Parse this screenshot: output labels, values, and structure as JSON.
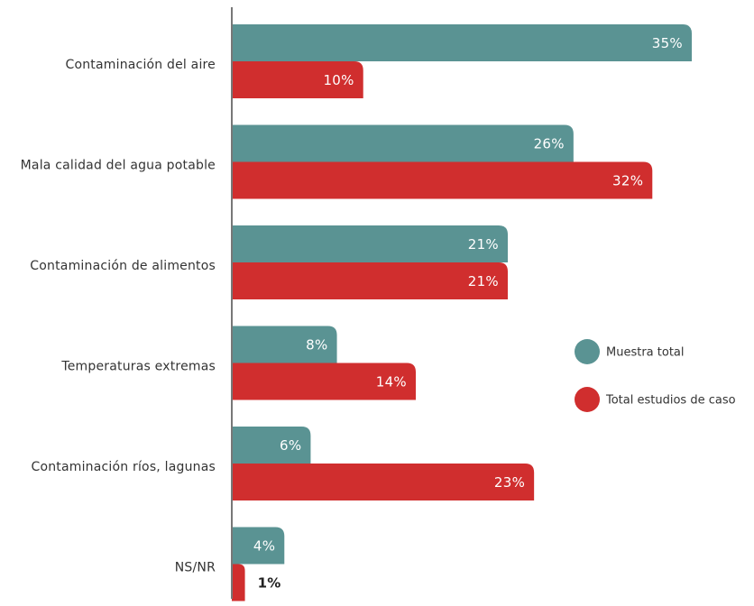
{
  "chart_data": {
    "type": "bar",
    "orientation": "horizontal",
    "categories": [
      "Contaminación del aire",
      "Mala calidad del agua potable",
      "Contaminación de alimentos",
      "Temperaturas extremas",
      "Contaminación ríos, lagunas",
      "NS/NR"
    ],
    "series": [
      {
        "name": "Muestra total",
        "color": "#5a9393",
        "values": [
          35,
          26,
          21,
          8,
          6,
          4
        ],
        "labels": [
          "35%",
          "26%",
          "21%",
          "8%",
          "6%",
          "4%"
        ]
      },
      {
        "name": "Total estudios de caso",
        "color": "#d02e2e",
        "values": [
          10,
          32,
          21,
          14,
          23,
          1
        ],
        "labels": [
          "10%",
          "32%",
          "21%",
          "14%",
          "23%",
          "1%"
        ]
      }
    ],
    "xlim": [
      0,
      35
    ],
    "legend_position": "right",
    "grid": false,
    "title": "",
    "xlabel": "",
    "ylabel": ""
  }
}
